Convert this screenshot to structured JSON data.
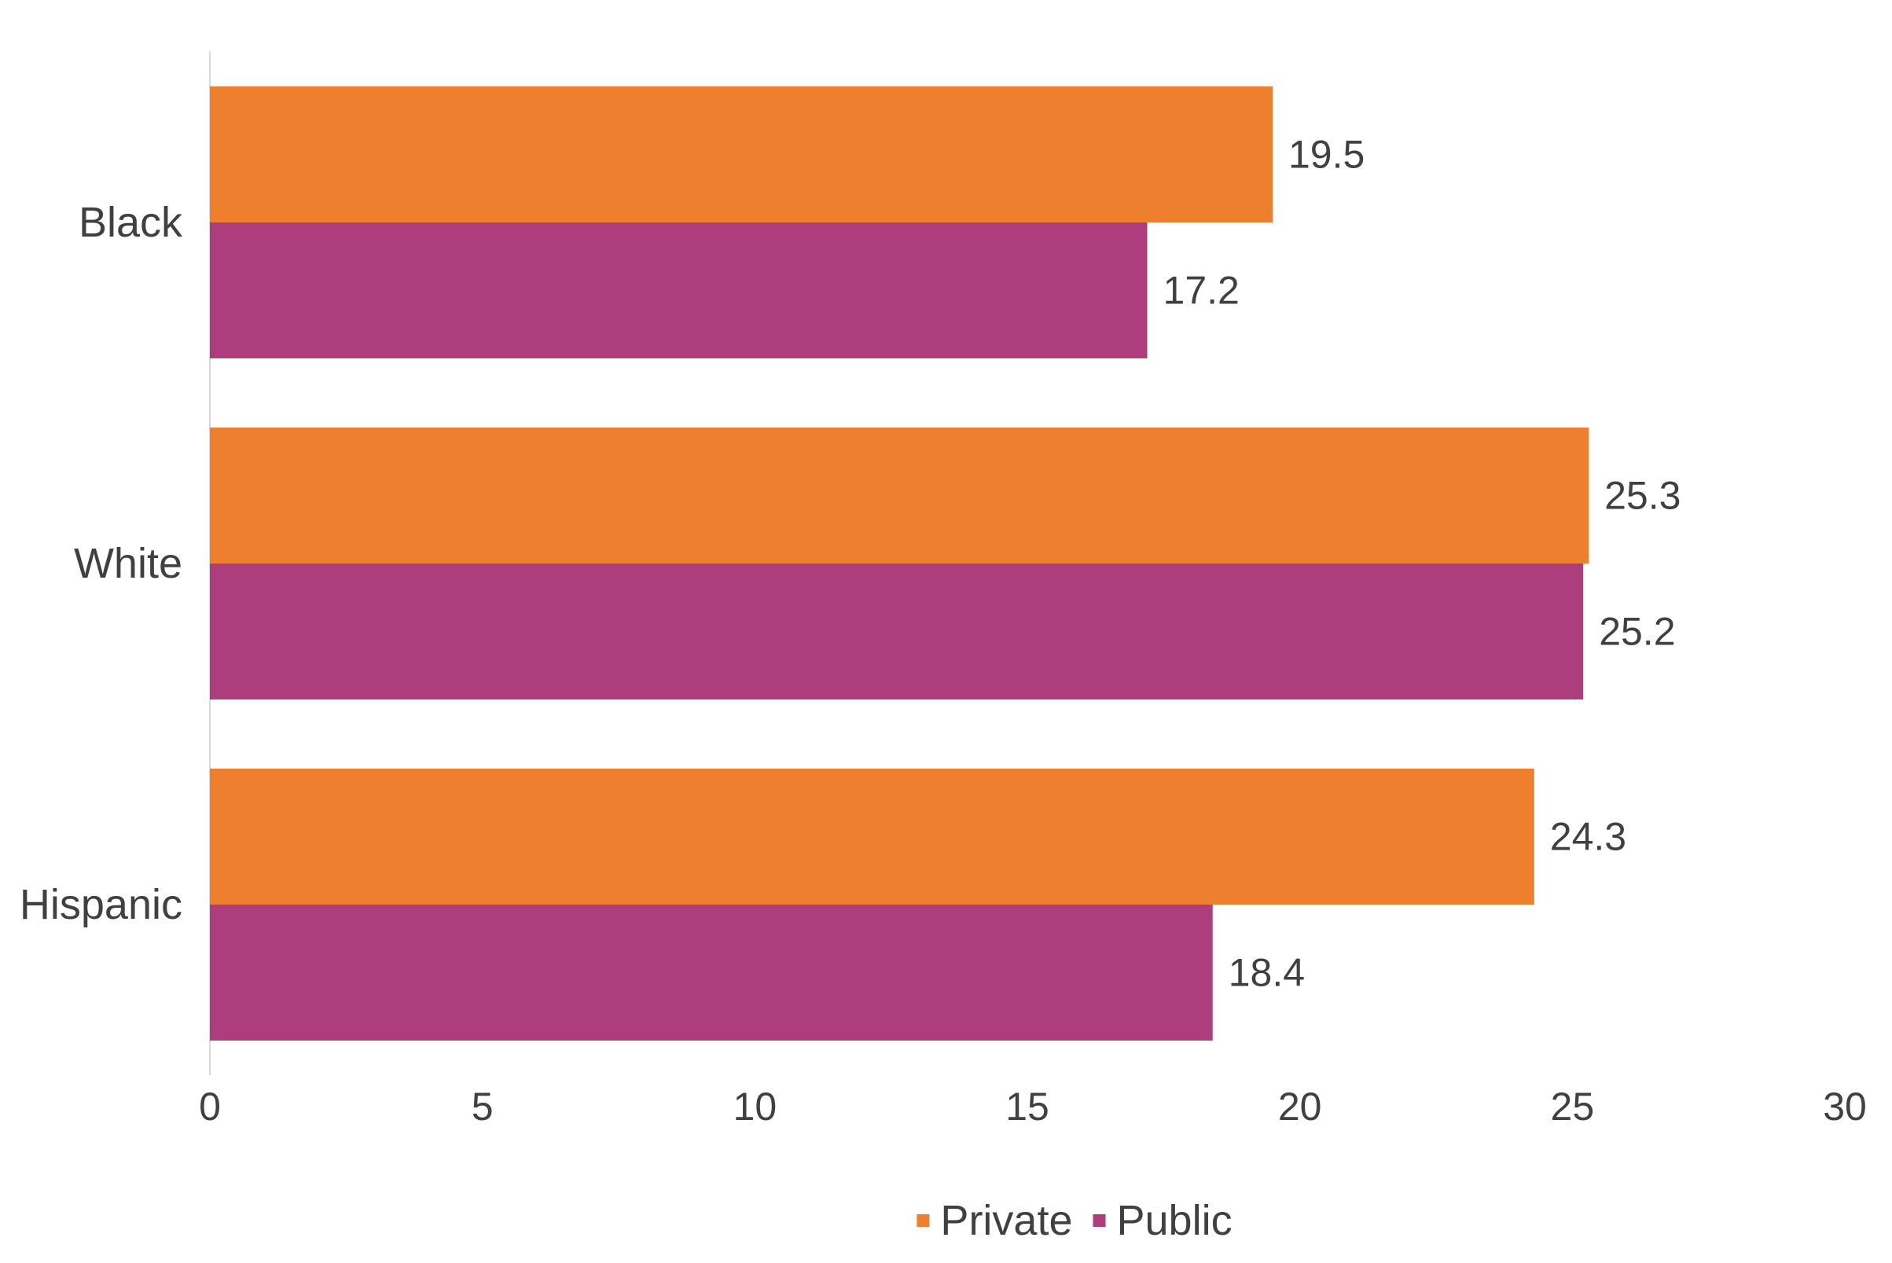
{
  "chart_data": {
    "type": "bar",
    "orientation": "horizontal",
    "categories": [
      "Black",
      "White",
      "Hispanic"
    ],
    "series": [
      {
        "name": "Private",
        "color": "#ED7F2E",
        "values": [
          19.5,
          25.3,
          24.3
        ]
      },
      {
        "name": "Public",
        "color": "#AE3D7E",
        "values": [
          17.2,
          25.2,
          18.4
        ]
      }
    ],
    "xlim": [
      0,
      30
    ],
    "xticks": [
      0,
      5,
      10,
      15,
      20,
      25,
      30
    ],
    "grid": false,
    "data_labels": true,
    "legend_position": "bottom-center",
    "title": "",
    "xlabel": "",
    "ylabel": "",
    "axis_color": "#D9D9D9",
    "text_color": "#404040"
  }
}
